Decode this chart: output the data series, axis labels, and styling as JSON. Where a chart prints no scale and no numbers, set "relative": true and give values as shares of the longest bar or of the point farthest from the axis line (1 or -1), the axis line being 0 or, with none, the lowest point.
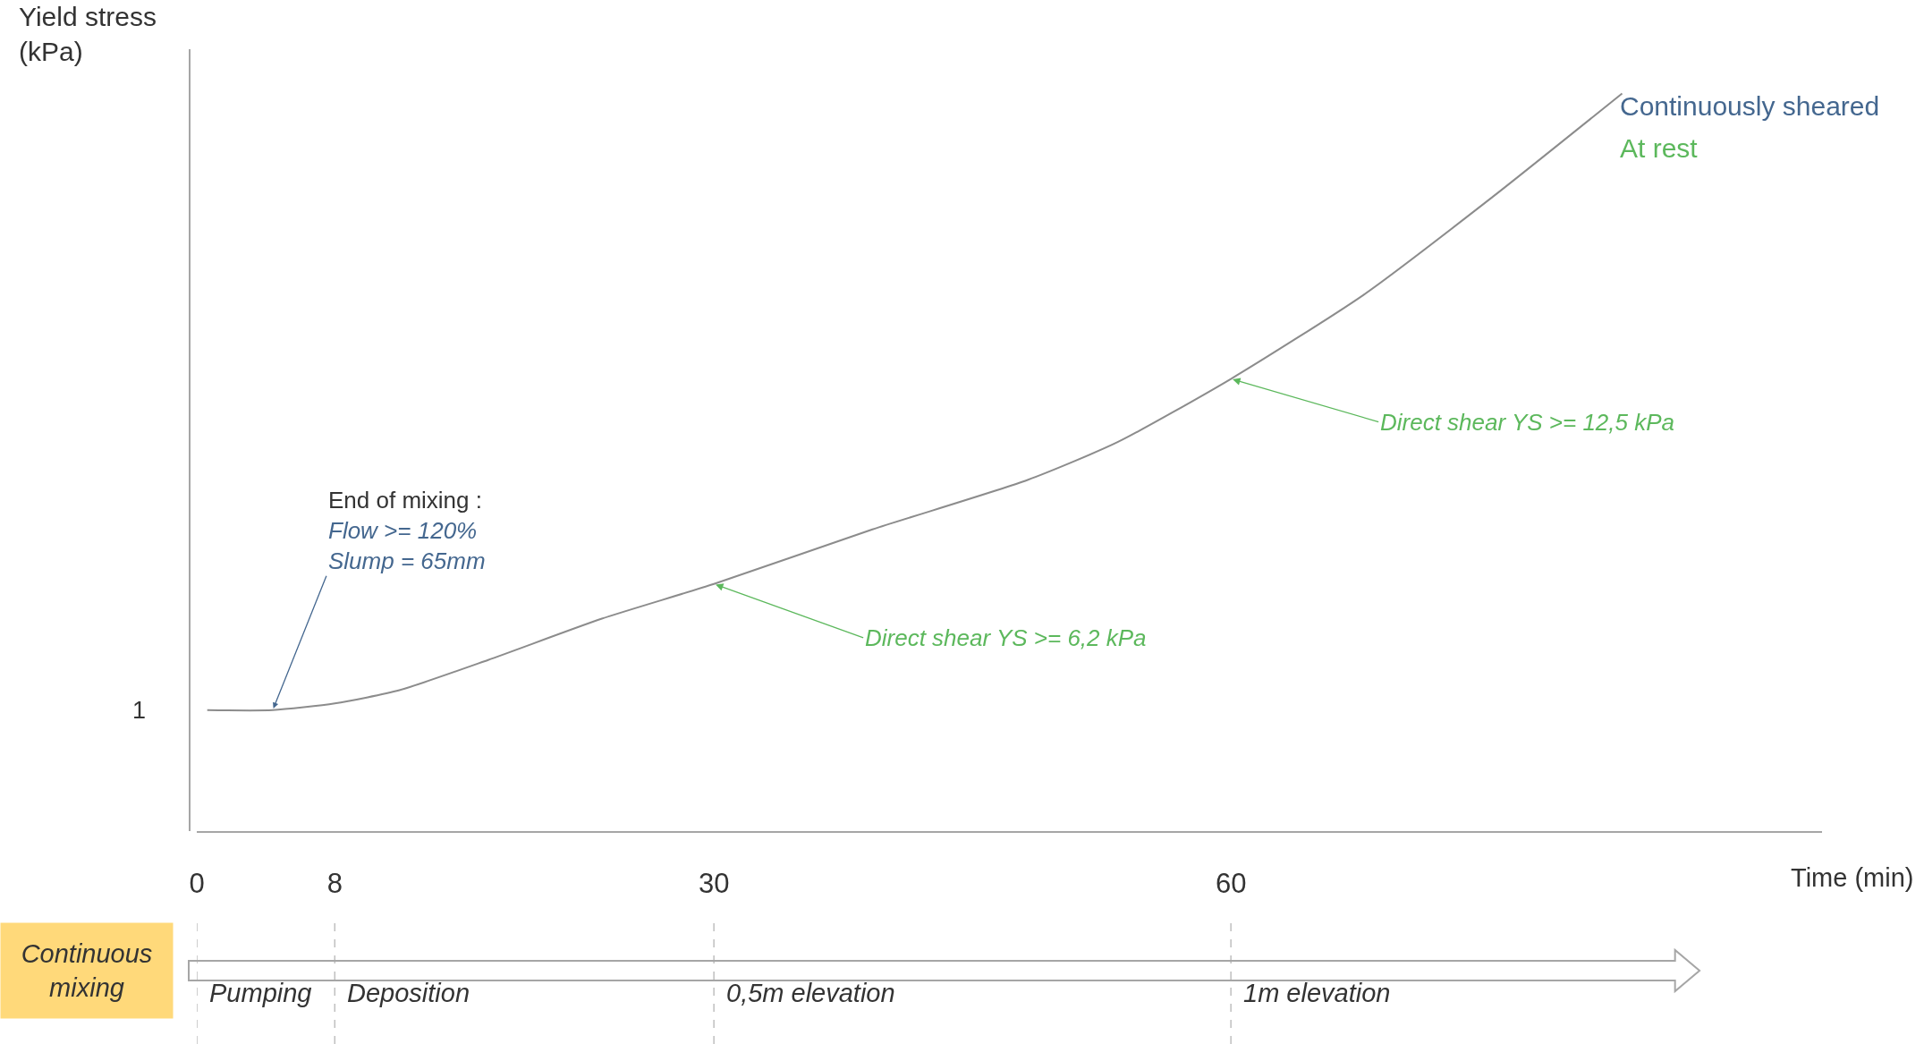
{
  "chart_data": {
    "type": "line",
    "relative": true,
    "xlabel": "Time (min)",
    "ylabel": "Yield stress (kPa)",
    "x": [
      0.6,
      4.4,
      8,
      11.75,
      16.9,
      23.5,
      30,
      39.2,
      48.2,
      53.4,
      60,
      67.7,
      75.2,
      82.7
    ],
    "series": [
      {
        "color": "#8c8c8c",
        "values": [
          0.164,
          0.164,
          0.173,
          0.191,
          0.232,
          0.288,
          0.335,
          0.409,
          0.476,
          0.527,
          0.613,
          0.727,
          0.86,
          1.0
        ]
      }
    ],
    "xlim": [
      0,
      94.3
    ],
    "xticks": [
      0,
      8,
      30,
      60
    ],
    "grid": false,
    "marker": "none",
    "line_style": "solid",
    "ref_lines": [
      {
        "axis": "x",
        "value": 0,
        "label": "Pumping",
        "color": "#bfbfbf",
        "line_style": "dashed"
      },
      {
        "axis": "x",
        "value": 8,
        "label": "Deposition",
        "color": "#bfbfbf",
        "line_style": "dashed"
      },
      {
        "axis": "x",
        "value": 30,
        "label": "0,5m elevation",
        "color": "#bfbfbf",
        "line_style": "dashed"
      },
      {
        "axis": "x",
        "value": 60,
        "label": "1m elevation",
        "color": "#bfbfbf",
        "line_style": "dashed"
      }
    ],
    "annotations": [
      {
        "text": "End of mixing :\nFlow >= 120%\nSlump = 65mm",
        "x": 4.4,
        "y": 0.164
      },
      {
        "text": "Direct shear YS >= 6,2 kPa",
        "x": 30,
        "y": 0.335
      },
      {
        "text": "Direct shear YS >= 12,5 kPa",
        "x": 60,
        "y": 0.613
      },
      "Continuously sheared",
      "At rest",
      "1",
      "Continuous mixing"
    ]
  }
}
